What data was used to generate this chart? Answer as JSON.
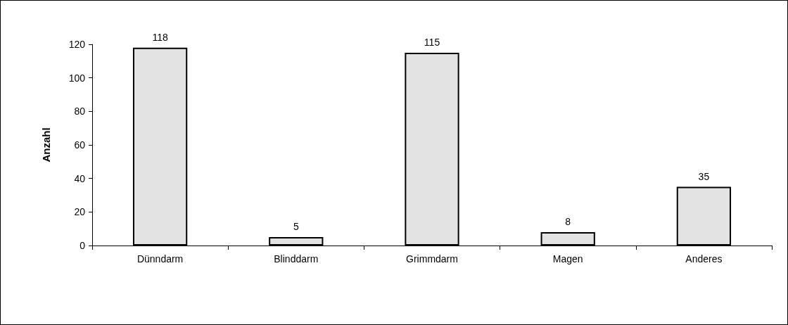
{
  "chart_data": {
    "type": "bar",
    "ylabel": "Anzahl",
    "categories": [
      "Dünndarm",
      "Blinddarm",
      "Grimmdarm",
      "Magen",
      "Anderes"
    ],
    "values": [
      118,
      5,
      115,
      8,
      35
    ],
    "color": "#e3e3e3",
    "ylim": [
      0,
      120
    ],
    "yticks": [
      0,
      20,
      40,
      60,
      80,
      100,
      120
    ],
    "data_labels": true
  }
}
